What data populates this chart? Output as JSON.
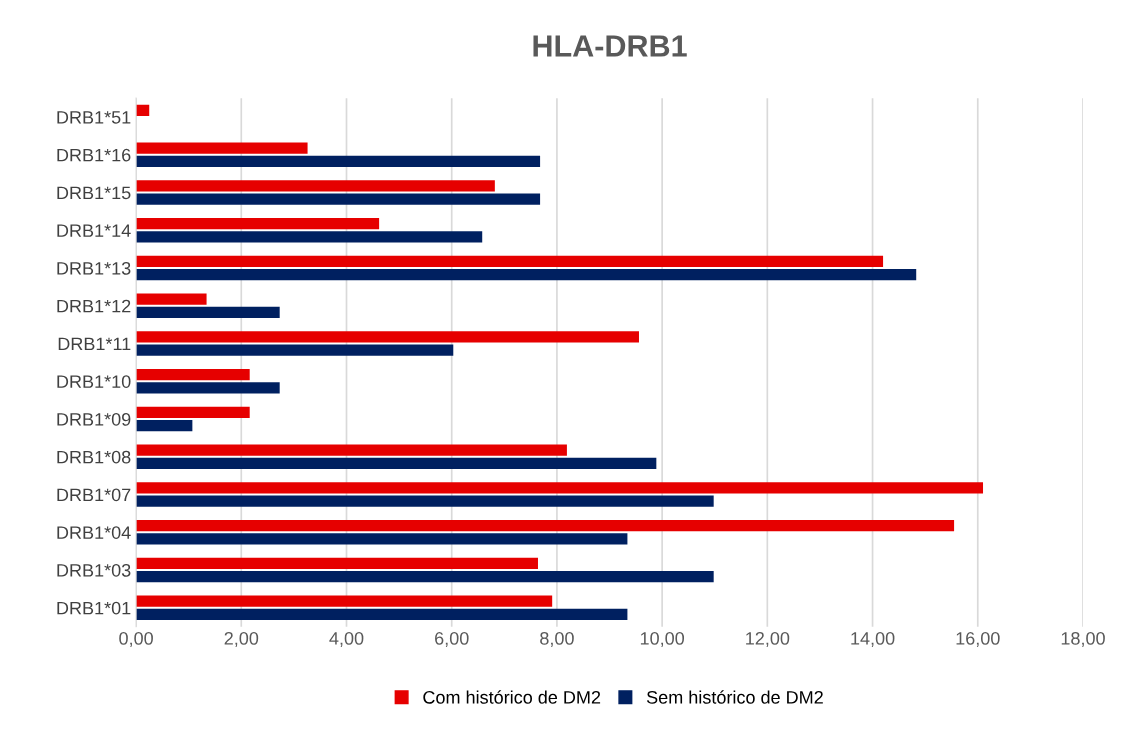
{
  "chart_data": {
    "type": "bar",
    "orientation": "horizontal",
    "title": "HLA-DRB1",
    "categories": [
      "DRB1*51",
      "DRB1*16",
      "DRB1*15",
      "DRB1*14",
      "DRB1*13",
      "DRB1*12",
      "DRB1*11",
      "DRB1*10",
      "DRB1*09",
      "DRB1*08",
      "DRB1*07",
      "DRB1*04",
      "DRB1*03",
      "DRB1*01"
    ],
    "series": [
      {
        "name": "Com histórico de DM2",
        "color": "#e60000",
        "values": [
          0.25,
          3.26,
          6.82,
          4.62,
          14.2,
          1.34,
          9.56,
          2.16,
          2.16,
          8.19,
          16.1,
          15.55,
          7.64,
          7.91
        ]
      },
      {
        "name": "Sem histórico de DM2",
        "color": "#002060",
        "values": [
          null,
          7.68,
          7.68,
          6.58,
          14.83,
          2.73,
          6.03,
          2.73,
          1.07,
          9.89,
          10.98,
          9.34,
          10.98,
          9.34
        ]
      }
    ],
    "xlim": [
      0,
      18
    ],
    "xticks": [
      {
        "value": 0,
        "label": "0,00"
      },
      {
        "value": 2,
        "label": "2,00"
      },
      {
        "value": 4,
        "label": "4,00"
      },
      {
        "value": 6,
        "label": "6,00"
      },
      {
        "value": 8,
        "label": "8,00"
      },
      {
        "value": 10,
        "label": "10,00"
      },
      {
        "value": 12,
        "label": "12,00"
      },
      {
        "value": 14,
        "label": "14,00"
      },
      {
        "value": 16,
        "label": "16,00"
      },
      {
        "value": 18,
        "label": "18,00"
      }
    ],
    "grid": "x",
    "legend": "bottom"
  }
}
